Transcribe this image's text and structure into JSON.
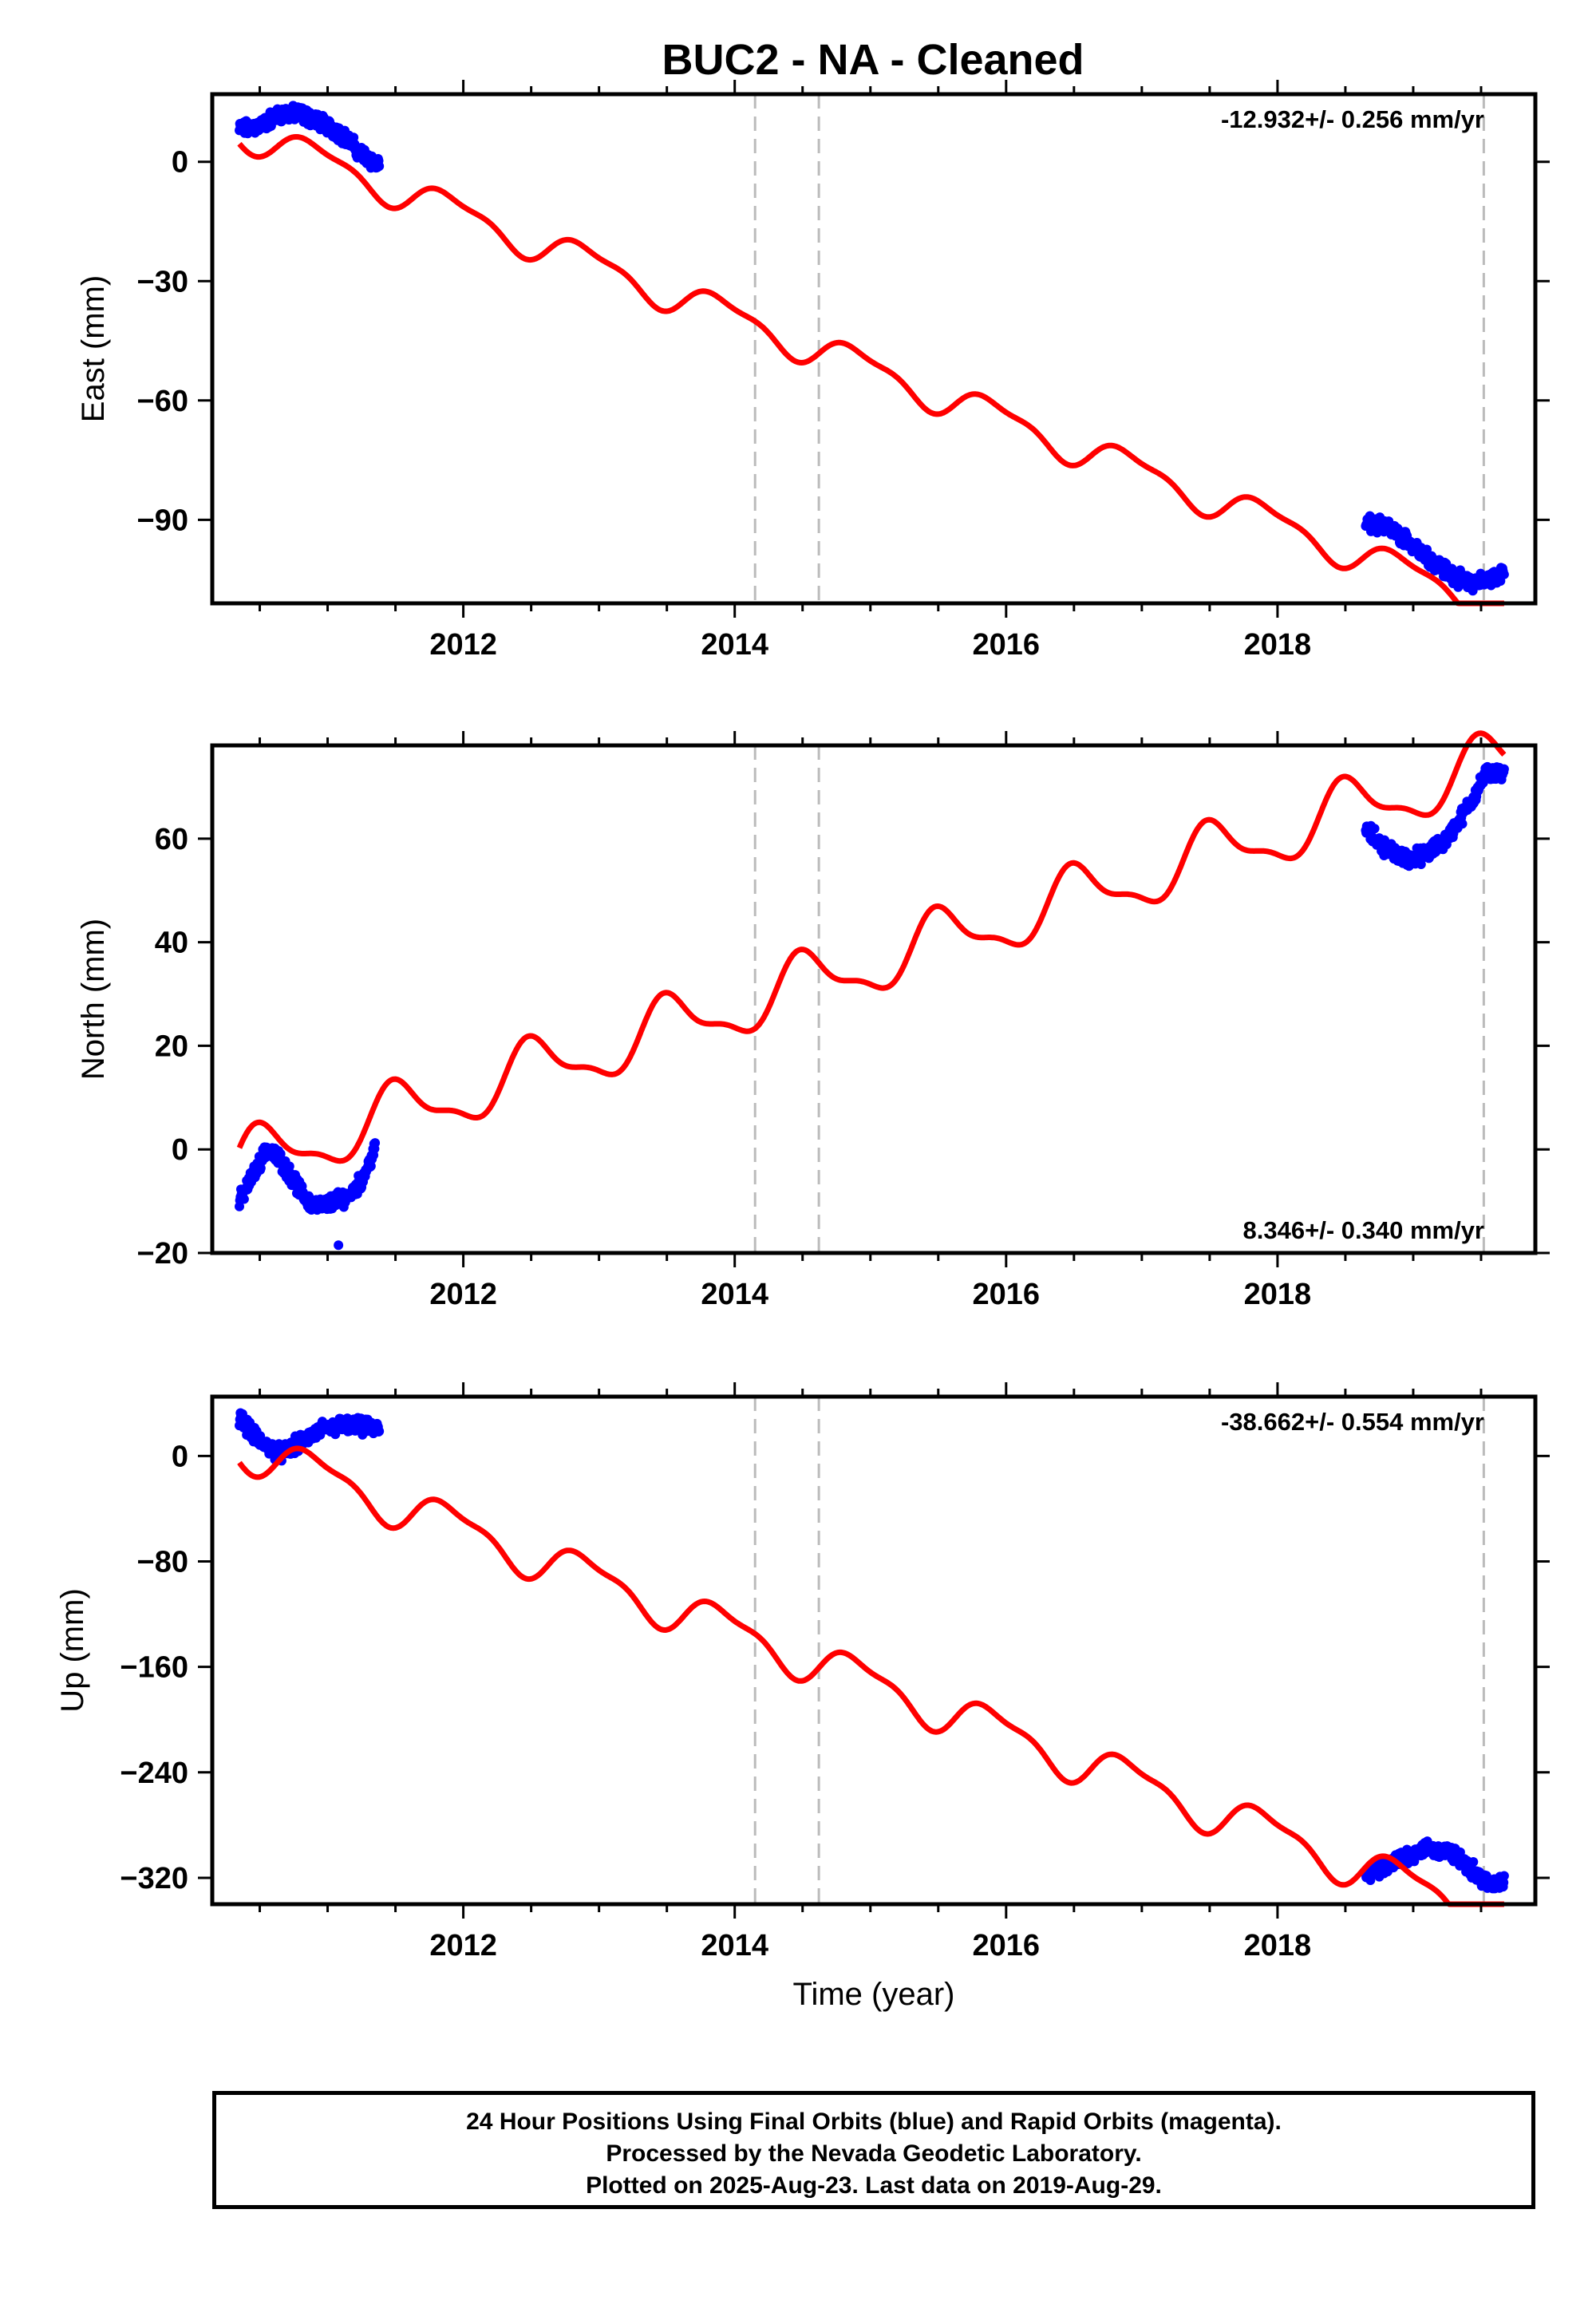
{
  "title": "BUC2  - NA - Cleaned",
  "footer": {
    "line1": "24 Hour Positions Using Final Orbits (blue) and Rapid Orbits (magenta).",
    "line2": "Processed by the Nevada Geodetic Laboratory.",
    "line3": "Plotted on 2025-Aug-23. Last data on 2019-Aug-29."
  },
  "colors": {
    "data_points": "#0000ff",
    "model_curve": "#ff0000",
    "event_lines": "#bbbbbb",
    "axes": "#000000"
  },
  "chart_data": [
    {
      "type": "scatter",
      "component": "East",
      "ylabel": "East (mm)",
      "xlabel": "",
      "xlim": [
        2010.15,
        2019.9
      ],
      "ylim": [
        -111,
        17
      ],
      "xticks": [
        2012,
        2014,
        2016,
        2018
      ],
      "yticks": [
        0,
        -30,
        -60,
        -90
      ],
      "grid": false,
      "rate": "-12.932+/- 0.256 mm/yr",
      "rate_position": "top-right",
      "events": [
        2014.15,
        2014.62,
        2019.52
      ],
      "model": {
        "base_year": 2010.35,
        "offset": 8,
        "slope": -12.932,
        "annual_amp": 4.0,
        "annual_phase": 4.3
      },
      "data_segments": [
        {
          "x": [
            2010.35,
            2010.5,
            2010.65,
            2010.8,
            2010.95,
            2011.1,
            2011.25,
            2011.38
          ],
          "y": [
            8,
            9,
            12,
            12,
            10,
            7,
            2,
            -1
          ]
        },
        {
          "x": [
            2018.65,
            2018.8,
            2018.95,
            2019.1,
            2019.25,
            2019.4,
            2019.55,
            2019.67
          ],
          "y": [
            -91,
            -92,
            -95,
            -99,
            -103,
            -106,
            -105,
            -103
          ]
        }
      ]
    },
    {
      "type": "scatter",
      "component": "North",
      "ylabel": "North (mm)",
      "xlabel": "",
      "xlim": [
        2010.15,
        2019.9
      ],
      "ylim": [
        -20,
        78
      ],
      "xticks": [
        2012,
        2014,
        2016,
        2018
      ],
      "yticks": [
        -20,
        0,
        20,
        40,
        60
      ],
      "grid": false,
      "rate": "8.346+/- 0.340 mm/yr",
      "rate_position": "bottom-right",
      "events": [
        2014.15,
        2014.62,
        2019.52
      ],
      "model": {
        "base_year": 2010.35,
        "offset": -3,
        "slope": 8.346,
        "annual_amp": 5.5,
        "annual_phase": 0.5
      },
      "data_segments": [
        {
          "x": [
            2010.35,
            2010.45,
            2010.55,
            2010.65,
            2010.75,
            2010.85,
            2010.95,
            2011.05,
            2011.15,
            2011.25,
            2011.35
          ],
          "y": [
            -10,
            -5,
            0,
            -2,
            -6,
            -10,
            -11,
            -10,
            -9,
            -6,
            0
          ]
        },
        {
          "x": [
            2018.65,
            2018.8,
            2018.95,
            2019.1,
            2019.25,
            2019.4,
            2019.55,
            2019.67
          ],
          "y": [
            62,
            58,
            56,
            57,
            60,
            66,
            73,
            72
          ]
        }
      ],
      "outliers": {
        "x": [
          2011.08
        ],
        "y": [
          -18.5
        ]
      }
    },
    {
      "type": "scatter",
      "component": "Up",
      "ylabel": "Up (mm)",
      "xlabel": "Time (year)",
      "xlim": [
        2010.15,
        2019.9
      ],
      "ylim": [
        -340,
        45
      ],
      "xticks": [
        2012,
        2014,
        2016,
        2018
      ],
      "yticks": [
        0,
        -80,
        -160,
        -240,
        -320
      ],
      "grid": false,
      "rate": "-38.662+/- 0.554 mm/yr",
      "rate_position": "top-right",
      "events": [
        2014.15,
        2014.62,
        2019.52
      ],
      "model": {
        "base_year": 2010.35,
        "offset": 8,
        "slope": -38.662,
        "annual_amp": 15,
        "annual_phase": 4.3
      },
      "data_segments": [
        {
          "x": [
            2010.35,
            2010.5,
            2010.65,
            2010.8,
            2010.95,
            2011.1,
            2011.25,
            2011.38
          ],
          "y": [
            30,
            10,
            2,
            10,
            20,
            23,
            22,
            20
          ]
        },
        {
          "x": [
            2018.65,
            2018.8,
            2018.95,
            2019.1,
            2019.25,
            2019.4,
            2019.55,
            2019.67
          ],
          "y": [
            -318,
            -312,
            -303,
            -298,
            -300,
            -310,
            -325,
            -322
          ]
        }
      ]
    }
  ]
}
